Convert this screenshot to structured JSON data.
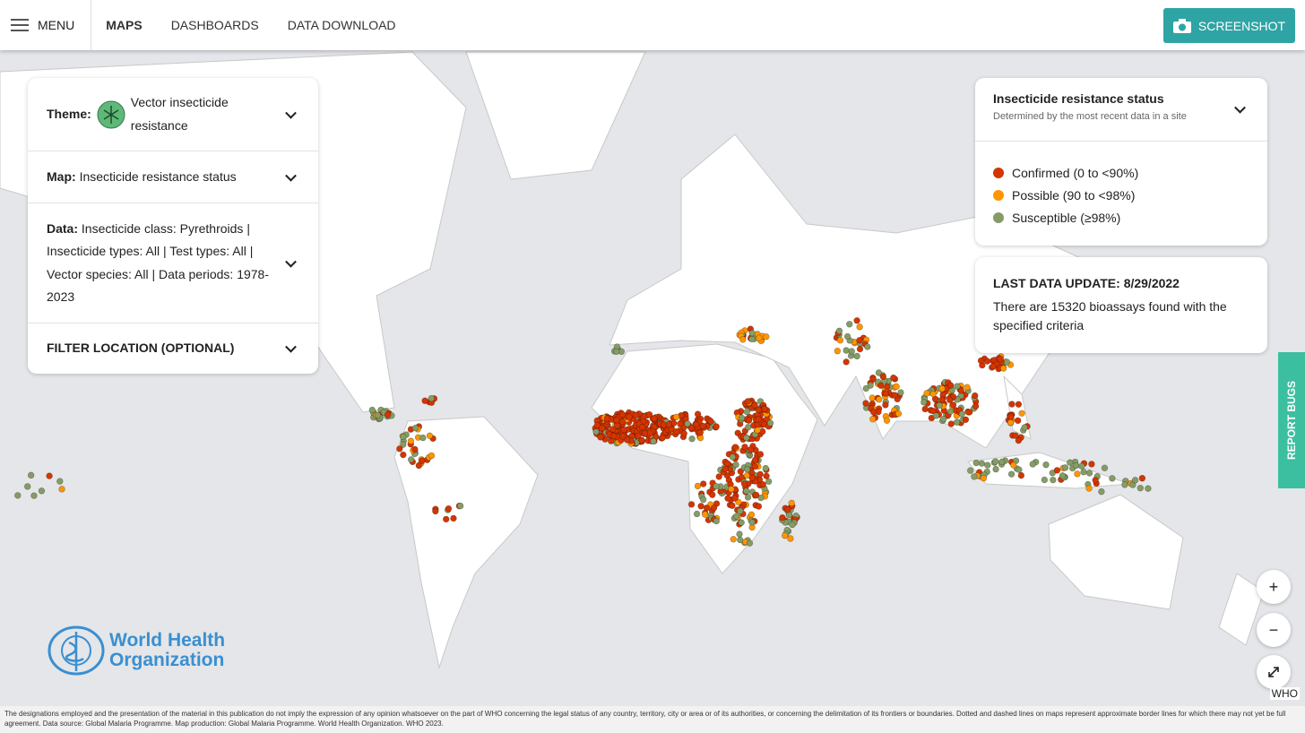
{
  "nav": {
    "menu": "MENU",
    "tabs": [
      "MAPS",
      "DASHBOARDS",
      "DATA DOWNLOAD"
    ],
    "screenshot": "SCREENSHOT"
  },
  "filters": {
    "theme_label": "Theme:",
    "theme": "Vector insecticide resistance",
    "map_label": "Map:",
    "map": "Insecticide resistance status",
    "data_label": "Data:",
    "data": "Insecticide class: Pyrethroids | Insecticide types: All | Test types: All | Vector species: All | Data periods: 1978-2023",
    "filter_location": "FILTER LOCATION (OPTIONAL)"
  },
  "legend": {
    "title": "Insecticide resistance status",
    "subtitle": "Determined by the most recent data in a site",
    "items": [
      "Confirmed (0 to <90%)",
      "Possible (90 to <98%)",
      "Susceptible (≥98%)"
    ]
  },
  "update": {
    "title": "LAST DATA UPDATE: 8/29/2022",
    "text": "There are 15320 bioassays found with the specified criteria"
  },
  "report_bugs": "REPORT BUGS",
  "zoom_in": "+",
  "zoom_out": "−",
  "attribution": "WHO",
  "logo": {
    "line1": "World Health",
    "line2": "Organization"
  },
  "disclaimer": "The designations employed and the presentation of the material in this publication do not imply the expression of any opinion whatsoever on the part of WHO concerning the legal status of any country, territory, city or area or of its authorities, or concerning the delimitation of its frontiers or boundaries. Dotted and dashed lines on maps represent approximate border lines for which there may not yet be full agreement. Data source: Global Malaria Programme. Map production: Global Malaria Programme. World Health Organization. WHO 2023."
}
